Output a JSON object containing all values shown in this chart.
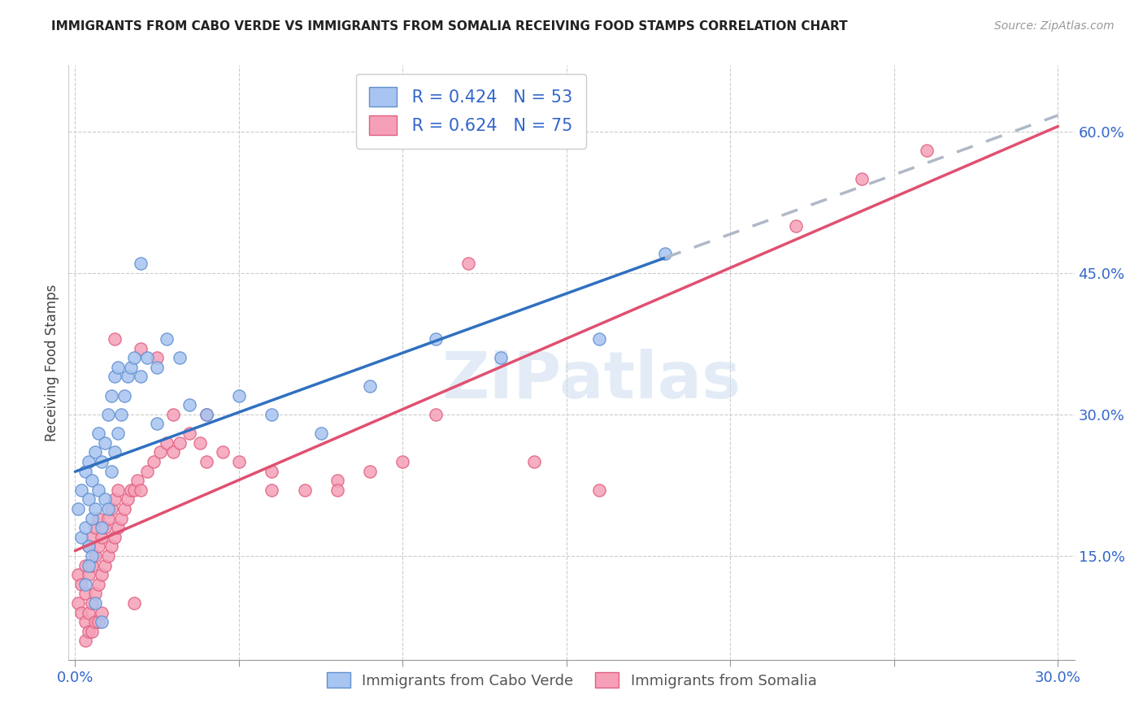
{
  "title": "IMMIGRANTS FROM CABO VERDE VS IMMIGRANTS FROM SOMALIA RECEIVING FOOD STAMPS CORRELATION CHART",
  "source": "Source: ZipAtlas.com",
  "ylabel": "Receiving Food Stamps",
  "y_ticks": [
    0.15,
    0.3,
    0.45,
    0.6
  ],
  "y_tick_labels": [
    "15.0%",
    "30.0%",
    "45.0%",
    "60.0%"
  ],
  "x_ticks": [
    0.0,
    0.05,
    0.1,
    0.15,
    0.2,
    0.25,
    0.3
  ],
  "xlim": [
    -0.002,
    0.305
  ],
  "ylim": [
    0.04,
    0.67
  ],
  "cabo_verde_color": "#a8c4f0",
  "somalia_color": "#f5a0b8",
  "cabo_verde_edge": "#6090d0",
  "somalia_edge": "#e06080",
  "trend_cabo_verde_color": "#3070c0",
  "trend_somalia_color": "#e05070",
  "trend_gray_color": "#b0b8c8",
  "R_cabo_verde": 0.424,
  "N_cabo_verde": 53,
  "R_somalia": 0.624,
  "N_somalia": 75,
  "legend_label_1": "Immigrants from Cabo Verde",
  "legend_label_2": "Immigrants from Somalia",
  "cabo_verde_x": [
    0.001,
    0.002,
    0.002,
    0.003,
    0.003,
    0.004,
    0.004,
    0.004,
    0.005,
    0.005,
    0.005,
    0.006,
    0.006,
    0.007,
    0.007,
    0.008,
    0.008,
    0.009,
    0.009,
    0.01,
    0.01,
    0.011,
    0.011,
    0.012,
    0.012,
    0.013,
    0.013,
    0.014,
    0.015,
    0.016,
    0.017,
    0.018,
    0.02,
    0.022,
    0.025,
    0.028,
    0.032,
    0.04,
    0.05,
    0.06,
    0.075,
    0.09,
    0.11,
    0.13,
    0.16,
    0.003,
    0.004,
    0.006,
    0.008,
    0.02,
    0.025,
    0.035,
    0.18
  ],
  "cabo_verde_y": [
    0.2,
    0.17,
    0.22,
    0.18,
    0.24,
    0.16,
    0.21,
    0.25,
    0.15,
    0.19,
    0.23,
    0.2,
    0.26,
    0.22,
    0.28,
    0.18,
    0.25,
    0.21,
    0.27,
    0.2,
    0.3,
    0.24,
    0.32,
    0.26,
    0.34,
    0.28,
    0.35,
    0.3,
    0.32,
    0.34,
    0.35,
    0.36,
    0.34,
    0.36,
    0.35,
    0.38,
    0.36,
    0.3,
    0.32,
    0.3,
    0.28,
    0.33,
    0.38,
    0.36,
    0.38,
    0.12,
    0.14,
    0.1,
    0.08,
    0.46,
    0.29,
    0.31,
    0.47
  ],
  "somalia_x": [
    0.001,
    0.001,
    0.002,
    0.002,
    0.003,
    0.003,
    0.003,
    0.004,
    0.004,
    0.004,
    0.005,
    0.005,
    0.005,
    0.006,
    0.006,
    0.006,
    0.007,
    0.007,
    0.007,
    0.008,
    0.008,
    0.009,
    0.009,
    0.01,
    0.01,
    0.011,
    0.011,
    0.012,
    0.012,
    0.013,
    0.013,
    0.014,
    0.015,
    0.016,
    0.017,
    0.018,
    0.019,
    0.02,
    0.022,
    0.024,
    0.026,
    0.028,
    0.03,
    0.032,
    0.035,
    0.038,
    0.04,
    0.045,
    0.05,
    0.06,
    0.07,
    0.08,
    0.09,
    0.1,
    0.12,
    0.14,
    0.16,
    0.003,
    0.004,
    0.005,
    0.006,
    0.007,
    0.008,
    0.02,
    0.025,
    0.03,
    0.04,
    0.06,
    0.08,
    0.11,
    0.22,
    0.24,
    0.26,
    0.012,
    0.018
  ],
  "somalia_y": [
    0.1,
    0.13,
    0.09,
    0.12,
    0.08,
    0.11,
    0.14,
    0.09,
    0.13,
    0.16,
    0.1,
    0.14,
    0.17,
    0.11,
    0.15,
    0.18,
    0.12,
    0.16,
    0.19,
    0.13,
    0.17,
    0.14,
    0.18,
    0.15,
    0.19,
    0.16,
    0.2,
    0.17,
    0.21,
    0.18,
    0.22,
    0.19,
    0.2,
    0.21,
    0.22,
    0.22,
    0.23,
    0.22,
    0.24,
    0.25,
    0.26,
    0.27,
    0.26,
    0.27,
    0.28,
    0.27,
    0.25,
    0.26,
    0.25,
    0.24,
    0.22,
    0.23,
    0.24,
    0.25,
    0.46,
    0.25,
    0.22,
    0.06,
    0.07,
    0.07,
    0.08,
    0.08,
    0.09,
    0.37,
    0.36,
    0.3,
    0.3,
    0.22,
    0.22,
    0.3,
    0.5,
    0.55,
    0.58,
    0.38,
    0.1
  ],
  "watermark": "ZIPatlas"
}
